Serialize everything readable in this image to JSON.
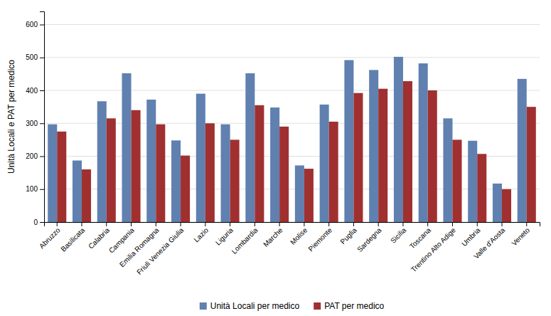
{
  "chart_data": {
    "type": "bar",
    "ylabel": "Unità Locali e PAT per medico",
    "categories": [
      "Abruzzo",
      "Basilicata",
      "Calabria",
      "Campania",
      "Emilia Romagna",
      "Friuli Venezia Giulia",
      "Lazio",
      "Liguria",
      "Lombardia",
      "Marche",
      "Molise",
      "Piemonte",
      "Puglia",
      "Sardegna",
      "Sicilia",
      "Toscana",
      "Trentino Alto Adige",
      "Umbria",
      "Valle d'Aosta",
      "Veneto"
    ],
    "series": [
      {
        "name": "Unità Locali per medico",
        "color": "#6080b0",
        "values": [
          297,
          187,
          367,
          452,
          372,
          248,
          390,
          297,
          452,
          348,
          172,
          357,
          492,
          462,
          502,
          482,
          315,
          247,
          117,
          435
        ]
      },
      {
        "name": "PAT per medico",
        "color": "#a03030",
        "values": [
          275,
          160,
          315,
          340,
          297,
          202,
          300,
          250,
          355,
          290,
          162,
          305,
          392,
          405,
          428,
          400,
          250,
          207,
          100,
          350
        ]
      }
    ],
    "ylim": [
      0,
      640
    ],
    "yticks": [
      0,
      100,
      200,
      300,
      400,
      500,
      600
    ],
    "grid": true,
    "legend": "bottom"
  }
}
